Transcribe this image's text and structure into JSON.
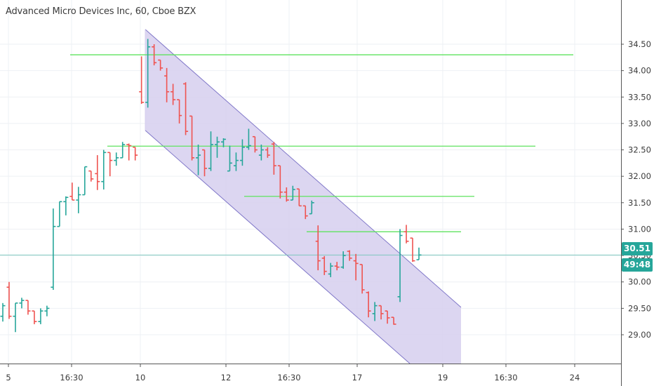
{
  "header": {
    "title": "Advanced Micro Devices Inc, 60, Cboe BZX"
  },
  "price_tag": {
    "last_price": "30.51",
    "countdown": "49:48"
  },
  "colors": {
    "up": "#26a69a",
    "down": "#ef5350",
    "level": "#5fe35f",
    "channel_fill": "#d6cfee",
    "channel_line": "#7f76c8",
    "last_price_line": "#7fc8bf",
    "grid": "#eef0f4"
  },
  "chart_data": {
    "type": "ohlc",
    "title": "Advanced Micro Devices Inc, 60, Cboe BZX",
    "ylim": [
      28.6,
      34.75
    ],
    "y_ticks": [
      "34.50",
      "34.00",
      "33.50",
      "33.00",
      "32.50",
      "32.00",
      "31.50",
      "31.00",
      "30.50",
      "30.00",
      "29.50",
      "29.00"
    ],
    "x_ticks": [
      "5",
      "16:30",
      "10",
      "12",
      "16:30",
      "17",
      "19",
      "16:30",
      "24"
    ],
    "horizontal_levels": [
      34.3,
      32.57,
      31.62,
      30.95
    ],
    "last_price": 30.51,
    "channel": {
      "upper_start": 34.78,
      "upper_end": 29.52,
      "lower_start": 32.87,
      "lower_end": 27.6
    },
    "bars": [
      [
        29.35,
        29.6,
        29.25,
        29.55
      ],
      [
        29.9,
        30.0,
        29.3,
        29.35
      ],
      [
        29.35,
        29.6,
        29.05,
        29.6
      ],
      [
        29.6,
        29.7,
        29.5,
        29.65
      ],
      [
        29.65,
        29.65,
        29.38,
        29.45
      ],
      [
        29.45,
        29.45,
        29.2,
        29.25
      ],
      [
        29.25,
        29.5,
        29.2,
        29.45
      ],
      [
        29.45,
        29.55,
        29.35,
        29.5
      ],
      [
        29.9,
        31.39,
        29.85,
        31.05
      ],
      [
        31.05,
        31.52,
        31.05,
        31.52
      ],
      [
        31.52,
        31.62,
        31.26,
        31.6
      ],
      [
        31.62,
        31.88,
        31.55,
        31.55
      ],
      [
        31.55,
        31.8,
        31.3,
        31.65
      ],
      [
        31.65,
        32.18,
        31.65,
        32.18
      ],
      [
        32.1,
        32.1,
        31.9,
        31.95
      ],
      [
        32.05,
        32.4,
        31.74,
        31.9
      ],
      [
        31.9,
        32.5,
        31.75,
        32.45
      ],
      [
        32.45,
        32.45,
        32.0,
        32.3
      ],
      [
        32.3,
        32.45,
        32.2,
        32.35
      ],
      [
        32.35,
        32.65,
        32.35,
        32.6
      ],
      [
        32.6,
        32.62,
        32.3,
        32.58
      ],
      [
        32.55,
        32.55,
        32.3,
        32.4
      ],
      [
        33.6,
        34.27,
        33.37,
        33.4
      ],
      [
        33.4,
        34.6,
        33.3,
        34.45
      ],
      [
        34.45,
        34.5,
        34.1,
        34.15
      ],
      [
        34.2,
        34.2,
        34.0,
        34.05
      ],
      [
        33.9,
        34.05,
        33.4,
        33.6
      ],
      [
        33.6,
        33.75,
        33.35,
        33.45
      ],
      [
        33.45,
        33.45,
        33.0,
        33.15
      ],
      [
        33.75,
        33.78,
        32.78,
        32.85
      ],
      [
        33.14,
        33.14,
        32.3,
        32.35
      ],
      [
        32.35,
        32.6,
        32.02,
        32.4
      ],
      [
        32.5,
        32.5,
        32.0,
        32.15
      ],
      [
        32.15,
        32.85,
        32.1,
        32.6
      ],
      [
        32.6,
        32.75,
        32.35,
        32.65
      ],
      [
        32.65,
        32.72,
        32.55,
        32.7
      ],
      [
        32.1,
        32.58,
        32.1,
        32.25
      ],
      [
        32.2,
        32.45,
        32.1,
        32.3
      ],
      [
        32.3,
        32.7,
        32.2,
        32.55
      ],
      [
        32.55,
        32.9,
        32.5,
        32.58
      ],
      [
        32.75,
        32.75,
        32.45,
        32.5
      ],
      [
        32.4,
        32.6,
        32.3,
        32.5
      ],
      [
        32.5,
        32.55,
        32.35,
        32.4
      ],
      [
        32.61,
        32.65,
        32.03,
        32.2
      ],
      [
        32.2,
        32.2,
        31.58,
        31.7
      ],
      [
        31.7,
        31.79,
        31.52,
        31.55
      ],
      [
        31.55,
        31.82,
        31.55,
        31.75
      ],
      [
        31.76,
        31.76,
        31.44,
        31.44
      ],
      [
        31.44,
        31.44,
        31.19,
        31.25
      ],
      [
        31.29,
        31.54,
        31.29,
        31.5
      ],
      [
        30.77,
        31.07,
        30.22,
        30.4
      ],
      [
        30.45,
        30.49,
        30.13,
        30.2
      ],
      [
        30.15,
        30.36,
        30.09,
        30.3
      ],
      [
        30.3,
        30.38,
        30.22,
        30.28
      ],
      [
        30.28,
        30.58,
        30.25,
        30.5
      ],
      [
        30.58,
        30.6,
        30.4,
        30.45
      ],
      [
        30.4,
        30.53,
        30.03,
        30.35
      ],
      [
        30.33,
        30.33,
        29.78,
        29.85
      ],
      [
        29.8,
        29.82,
        29.33,
        29.45
      ],
      [
        29.4,
        29.62,
        29.26,
        29.55
      ],
      [
        29.55,
        29.55,
        29.29,
        29.4
      ],
      [
        29.45,
        29.45,
        29.21,
        29.32
      ],
      [
        29.33,
        29.33,
        29.19,
        29.2
      ],
      [
        29.72,
        31.0,
        29.62,
        30.88
      ],
      [
        30.95,
        31.08,
        30.73,
        30.77
      ],
      [
        30.83,
        30.83,
        30.38,
        30.4
      ],
      [
        30.42,
        30.65,
        30.42,
        30.51
      ]
    ]
  }
}
